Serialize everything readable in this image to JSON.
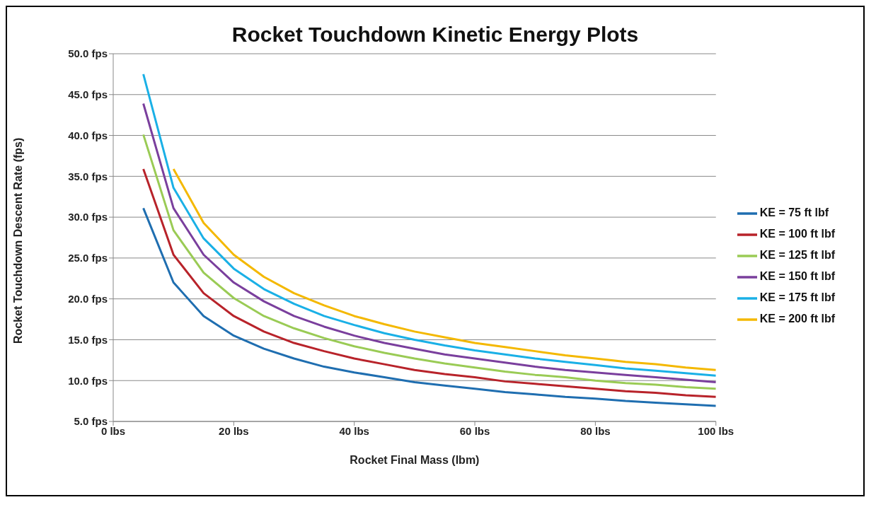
{
  "chart_data": {
    "type": "line",
    "title": "Rocket Touchdown Kinetic Energy Plots",
    "xlabel": "Rocket Final Mass (lbm)",
    "ylabel": "Rocket Touchdown Descent Rate (fps)",
    "x": [
      5,
      10,
      15,
      20,
      25,
      30,
      35,
      40,
      45,
      50,
      55,
      60,
      65,
      70,
      75,
      80,
      85,
      90,
      95,
      100
    ],
    "series": [
      {
        "name": "KE = 75 ft lbf",
        "color": "#1f6eb0",
        "values": [
          31.1,
          22.0,
          17.9,
          15.5,
          13.9,
          12.7,
          11.7,
          11.0,
          10.4,
          9.8,
          9.4,
          9.0,
          8.6,
          8.3,
          8.0,
          7.8,
          7.5,
          7.3,
          7.1,
          6.9
        ]
      },
      {
        "name": "KE = 100 ft lbf",
        "color": "#b8232a",
        "values": [
          35.9,
          25.4,
          20.7,
          17.9,
          16.0,
          14.6,
          13.6,
          12.7,
          12.0,
          11.3,
          10.8,
          10.4,
          9.9,
          9.6,
          9.3,
          9.0,
          8.7,
          8.5,
          8.2,
          8.0
        ]
      },
      {
        "name": "KE = 125 ft lbf",
        "color": "#9acb55",
        "values": [
          40.1,
          28.4,
          23.2,
          20.1,
          17.9,
          16.4,
          15.2,
          14.2,
          13.4,
          12.7,
          12.1,
          11.6,
          11.1,
          10.7,
          10.4,
          10.0,
          9.7,
          9.5,
          9.2,
          9.0
        ]
      },
      {
        "name": "KE = 150 ft lbf",
        "color": "#7a3f9d",
        "values": [
          43.9,
          31.1,
          25.4,
          22.0,
          19.7,
          17.9,
          16.6,
          15.5,
          14.6,
          13.9,
          13.2,
          12.7,
          12.2,
          11.7,
          11.3,
          11.0,
          10.7,
          10.4,
          10.1,
          9.8
        ]
      },
      {
        "name": "KE = 175 ft lbf",
        "color": "#1ab0e6",
        "values": [
          47.5,
          33.6,
          27.4,
          23.7,
          21.2,
          19.4,
          17.9,
          16.8,
          15.8,
          15.0,
          14.3,
          13.7,
          13.2,
          12.7,
          12.3,
          11.9,
          11.5,
          11.2,
          10.9,
          10.6
        ]
      },
      {
        "name": "KE = 200 ft lbf",
        "color": "#f4b800",
        "values": [
          null,
          35.9,
          29.3,
          25.4,
          22.7,
          20.7,
          19.2,
          17.9,
          16.9,
          16.0,
          15.3,
          14.6,
          14.1,
          13.6,
          13.1,
          12.7,
          12.3,
          12.0,
          11.6,
          11.3
        ]
      }
    ],
    "xlim": [
      0,
      100
    ],
    "xticks": [
      {
        "value": 0,
        "label": "0 lbs"
      },
      {
        "value": 20,
        "label": "20 lbs"
      },
      {
        "value": 40,
        "label": "40 lbs"
      },
      {
        "value": 60,
        "label": "60 lbs"
      },
      {
        "value": 80,
        "label": "80 lbs"
      },
      {
        "value": 100,
        "label": "100 lbs"
      }
    ],
    "ylim": [
      5,
      50
    ],
    "yticks": [
      {
        "value": 5,
        "label": "5.0 fps"
      },
      {
        "value": 10,
        "label": "10.0 fps"
      },
      {
        "value": 15,
        "label": "15.0 fps"
      },
      {
        "value": 20,
        "label": "20.0 fps"
      },
      {
        "value": 25,
        "label": "25.0 fps"
      },
      {
        "value": 30,
        "label": "30.0 fps"
      },
      {
        "value": 35,
        "label": "35.0 fps"
      },
      {
        "value": 40,
        "label": "40.0 fps"
      },
      {
        "value": 45,
        "label": "45.0 fps"
      },
      {
        "value": 50,
        "label": "50.0 fps"
      }
    ],
    "grid": "y",
    "legend": "right",
    "marker": "none",
    "line_style": "solid"
  }
}
